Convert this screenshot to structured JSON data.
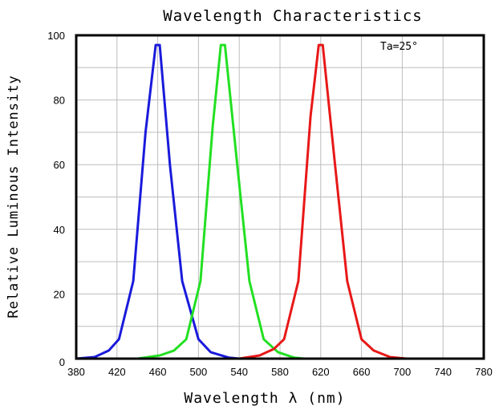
{
  "chart_data": {
    "type": "line",
    "title": "Wavelength Characteristics",
    "xlabel": "Wavelength λ (nm)",
    "ylabel": "Relative Luminous Intensity",
    "xlim": [
      380,
      780
    ],
    "ylim": [
      0,
      100
    ],
    "x_ticks": [
      "380",
      "420",
      "460",
      "500",
      "540",
      "580",
      "620",
      "660",
      "700",
      "740",
      "780"
    ],
    "y_ticks": [
      "0",
      "20",
      "40",
      "60",
      "80",
      "100"
    ],
    "grid": true,
    "annotation": "Ta=25°",
    "series": [
      {
        "color": "#1a1adc",
        "points": [
          [
            380,
            0
          ],
          [
            398,
            0.5
          ],
          [
            412,
            2.5
          ],
          [
            422,
            6
          ],
          [
            436,
            24
          ],
          [
            448,
            70
          ],
          [
            458,
            97
          ],
          [
            462,
            97
          ],
          [
            472,
            60
          ],
          [
            484,
            24
          ],
          [
            500,
            6
          ],
          [
            512,
            2
          ],
          [
            530,
            0.3
          ],
          [
            540,
            0
          ]
        ]
      },
      {
        "color": "#22e022",
        "points": [
          [
            440,
            0
          ],
          [
            462,
            1
          ],
          [
            476,
            2.5
          ],
          [
            488,
            6
          ],
          [
            502,
            24
          ],
          [
            514,
            72
          ],
          [
            522,
            97
          ],
          [
            526,
            97
          ],
          [
            538,
            60
          ],
          [
            550,
            24
          ],
          [
            564,
            6
          ],
          [
            578,
            2
          ],
          [
            594,
            0.3
          ],
          [
            604,
            0
          ]
        ]
      },
      {
        "color": "#e81818",
        "points": [
          [
            540,
            0
          ],
          [
            560,
            1
          ],
          [
            574,
            3
          ],
          [
            584,
            6
          ],
          [
            598,
            24
          ],
          [
            610,
            75
          ],
          [
            618,
            97
          ],
          [
            622,
            97
          ],
          [
            634,
            60
          ],
          [
            646,
            24
          ],
          [
            660,
            6
          ],
          [
            672,
            2.5
          ],
          [
            688,
            0.5
          ],
          [
            704,
            0
          ]
        ]
      }
    ]
  }
}
